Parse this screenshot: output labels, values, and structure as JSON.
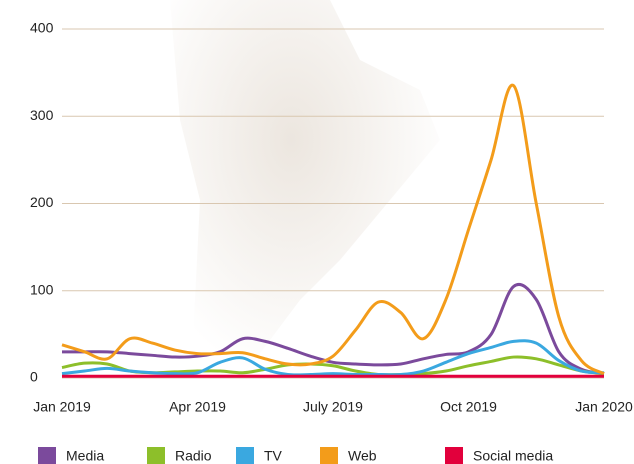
{
  "chart_data": {
    "type": "line",
    "categories": [
      "Jan 2019",
      null,
      null,
      null,
      null,
      null,
      "Apr 2019",
      null,
      null,
      null,
      null,
      null,
      "July 2019",
      null,
      null,
      null,
      null,
      null,
      "Oct 2019",
      null,
      null,
      null,
      null,
      null,
      "Jan 2020"
    ],
    "series": [
      {
        "name": "Media",
        "color": "#7b4a9c",
        "values": [
          30,
          30,
          30,
          28,
          26,
          24,
          25,
          30,
          45,
          42,
          34,
          25,
          18,
          16,
          15,
          16,
          22,
          27,
          30,
          50,
          105,
          90,
          30,
          10,
          5
        ]
      },
      {
        "name": "Radio",
        "color": "#8dbf2a",
        "values": [
          12,
          17,
          16,
          8,
          6,
          7,
          8,
          8,
          6,
          10,
          15,
          16,
          14,
          8,
          4,
          4,
          5,
          8,
          14,
          19,
          24,
          22,
          15,
          8,
          5
        ]
      },
      {
        "name": "TV",
        "color": "#3aa8e0",
        "values": [
          5,
          8,
          11,
          8,
          6,
          5,
          6,
          18,
          23,
          10,
          4,
          4,
          5,
          4,
          4,
          4,
          8,
          18,
          28,
          35,
          42,
          40,
          20,
          8,
          6
        ]
      },
      {
        "name": "Web",
        "color": "#f39c1a",
        "values": [
          38,
          30,
          22,
          45,
          40,
          32,
          28,
          28,
          29,
          22,
          16,
          16,
          25,
          55,
          87,
          75,
          45,
          90,
          170,
          250,
          335,
          200,
          70,
          20,
          5
        ]
      },
      {
        "name": "Social media",
        "color": "#e2003c",
        "values": [
          2,
          2,
          2,
          2,
          2,
          2,
          2,
          2,
          2,
          2,
          2,
          2,
          2,
          2,
          2,
          2,
          2,
          2,
          2,
          2,
          2,
          2,
          2,
          2,
          2
        ]
      }
    ],
    "ylim": [
      0,
      400
    ],
    "yticks": [
      0,
      100,
      200,
      300,
      400
    ],
    "grid": true,
    "legend": "bottom"
  }
}
